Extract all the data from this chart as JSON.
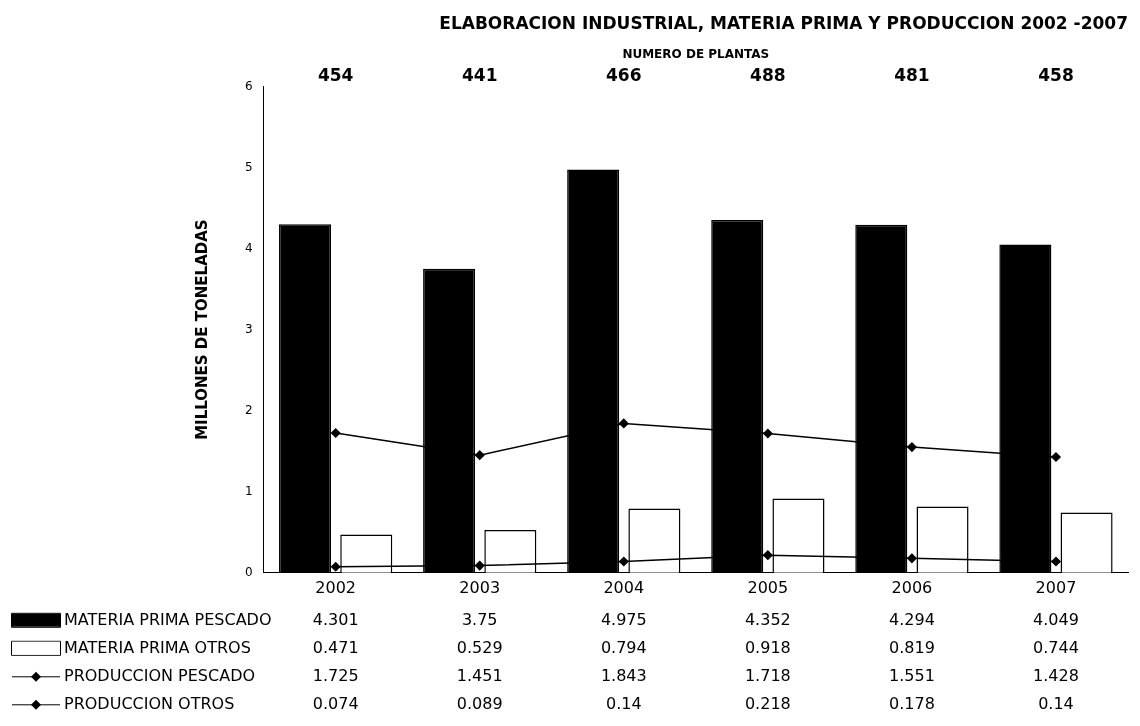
{
  "chart_data": {
    "type": "bar",
    "title": "ELABORACION INDUSTRIAL, MATERIA PRIMA Y PRODUCCION 2002 -2007",
    "ylabel": "MILLONES DE TONELADAS",
    "categories": [
      "2002",
      "2003",
      "2004",
      "2005",
      "2006",
      "2007"
    ],
    "series": [
      {
        "name": "MATERIA PRIMA PESCADO",
        "color": "#000000",
        "values": [
          4.301,
          3.75,
          4.975,
          4.352,
          4.294,
          4.049
        ]
      },
      {
        "name": "MATERIA PRIMA OTROS",
        "color": "#ffffff",
        "values": [
          0.471,
          0.529,
          0.794,
          0.918,
          0.819,
          0.744
        ]
      },
      {
        "name": "PRODUCCION PESCADO",
        "type": "line",
        "color": "#000000",
        "values": [
          1.725,
          1.451,
          1.843,
          1.718,
          1.551,
          1.428
        ]
      },
      {
        "name": "PRODUCCION OTROS",
        "type": "line",
        "color": "#000000",
        "values": [
          0.074,
          0.089,
          0.14,
          0.218,
          0.178,
          0.14
        ]
      }
    ],
    "annotations": [
      "NUMERO DE PLANTAS",
      "454",
      "441",
      "466",
      "488",
      "481",
      "458"
    ],
    "ylim": [
      0,
      6
    ],
    "yticks": [
      0,
      1,
      2,
      3,
      4,
      5,
      6
    ],
    "grid": false,
    "legend": "bottom",
    "marker": "diamond",
    "data_labels": true
  }
}
